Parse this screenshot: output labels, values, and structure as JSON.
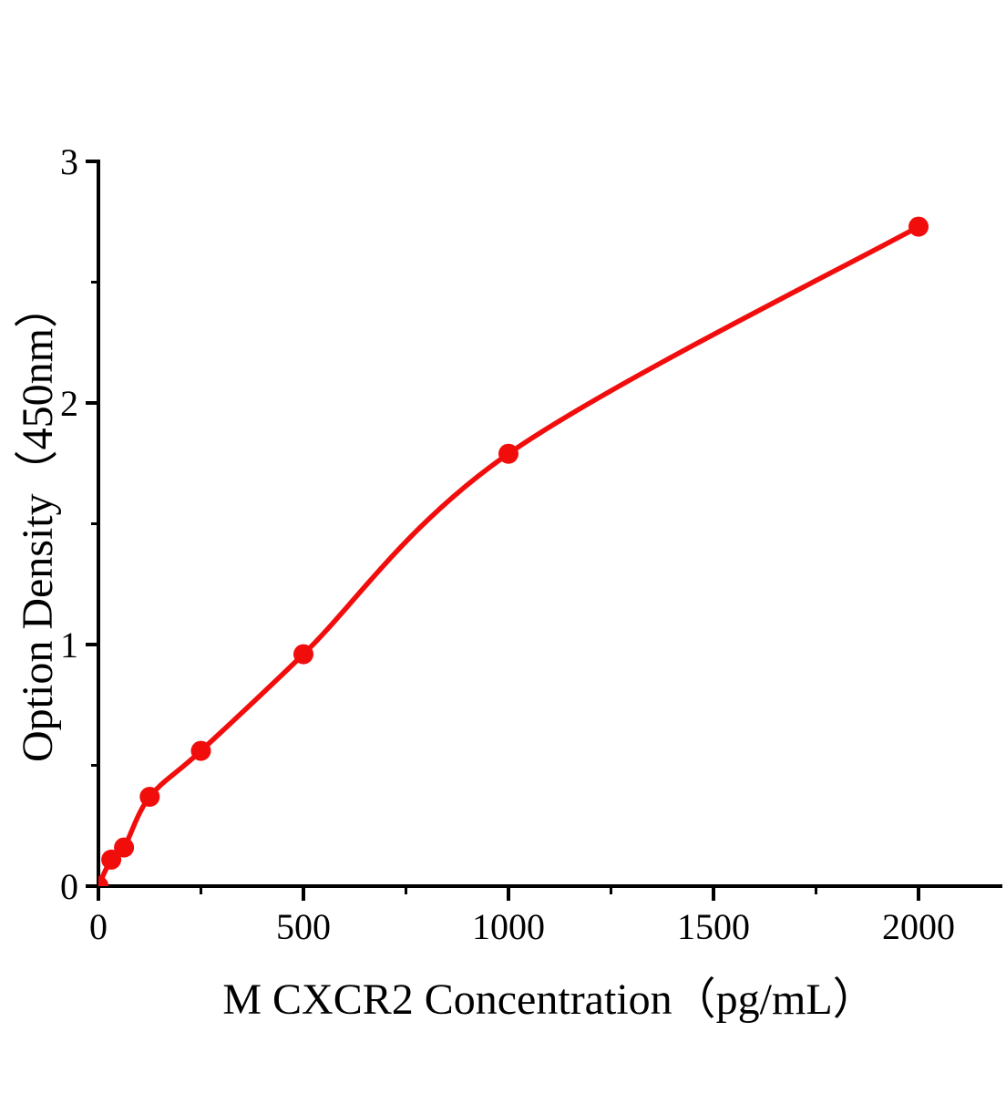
{
  "chart_data": {
    "type": "scatter",
    "subtype": "standard-curve-with-fitted-line",
    "title": "",
    "xlabel": "M CXCR2 Concentration（pg/mL）",
    "ylabel": "Option Density（450nm）",
    "series": [
      {
        "x": [
          0,
          31.25,
          62.5,
          125,
          250,
          500,
          1000,
          2000
        ],
        "y": [
          0.002,
          0.11,
          0.16,
          0.37,
          0.56,
          0.96,
          1.79,
          2.73
        ]
      }
    ],
    "xlim": [
      0,
      2200
    ],
    "ylim": [
      0,
      3
    ],
    "x_major_ticks": [
      0,
      500,
      1000,
      1500,
      2000
    ],
    "x_major_tick_labels": [
      "0",
      "500",
      "1000",
      "1500",
      "2000"
    ],
    "x_minor_ticks": [
      250,
      750,
      1250,
      1750
    ],
    "y_major_ticks": [
      0,
      1,
      2,
      3
    ],
    "y_major_tick_labels": [
      "0",
      "1",
      "2",
      "3"
    ],
    "y_minor_ticks": [
      0.5,
      1.5,
      2.5
    ],
    "grid": false,
    "legend": null,
    "marker": {
      "shape": "circle",
      "radius": 11
    },
    "line": {
      "style": "smooth-fit",
      "width": 5.5
    },
    "colors": {
      "curve": "#f20d0d",
      "marker": "#f20d0d",
      "axis": "#000000",
      "text": "#000000",
      "background": "#ffffff"
    }
  }
}
